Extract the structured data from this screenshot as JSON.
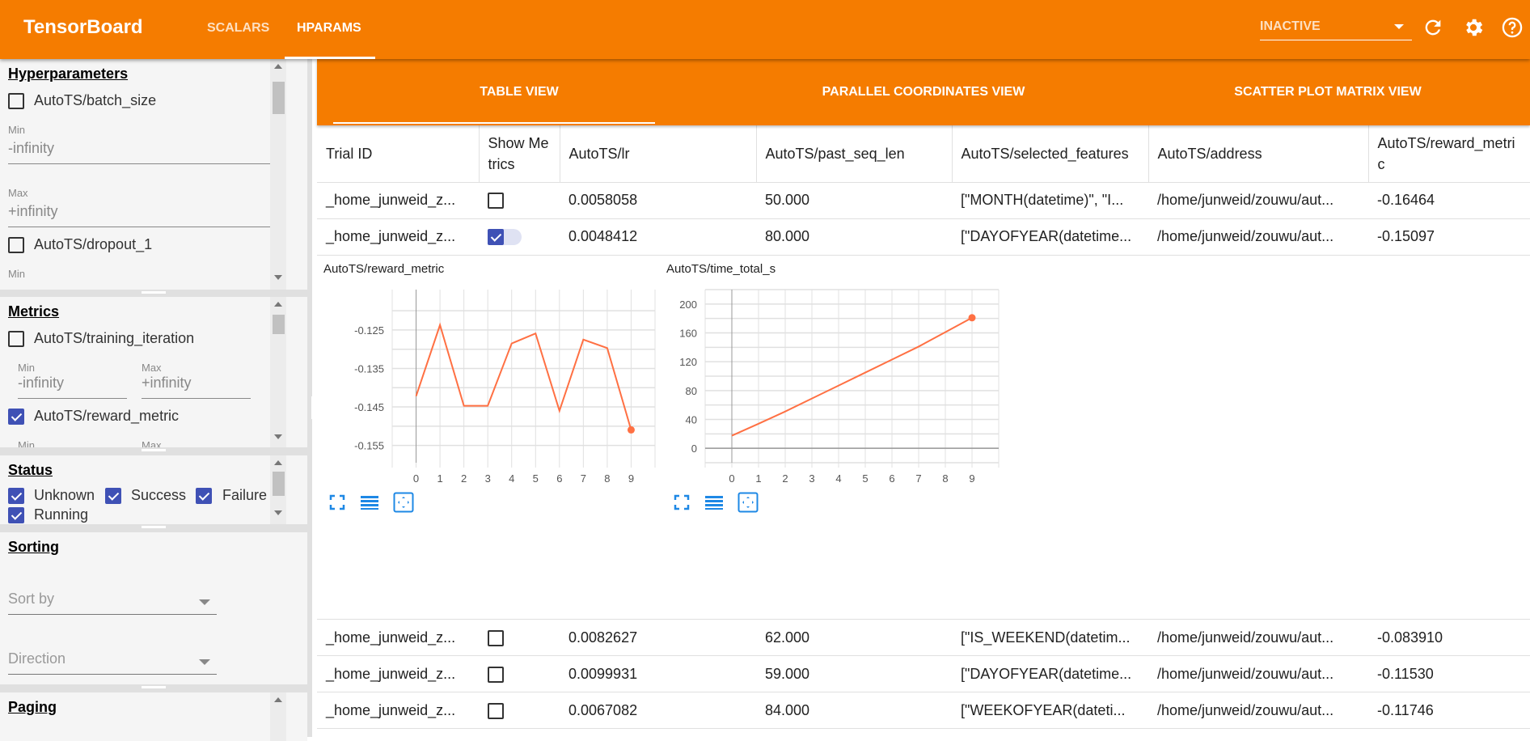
{
  "header": {
    "title": "TensorBoard",
    "tabs": [
      {
        "label": "SCALARS",
        "active": false
      },
      {
        "label": "HPARAMS",
        "active": true
      }
    ],
    "run_selector": "INACTIVE",
    "icons": [
      "refresh-icon",
      "settings-icon",
      "help-icon"
    ],
    "color": "#f57c00"
  },
  "sidebar": {
    "hyperparameters": {
      "title": "Hyperparameters",
      "items": [
        {
          "label": "AutoTS/batch_size",
          "checked": false,
          "min_label": "Min",
          "min": "-infinity",
          "max_label": "Max",
          "max": "+infinity"
        },
        {
          "label": "AutoTS/dropout_1",
          "checked": false,
          "min_label": "Min"
        }
      ]
    },
    "metrics": {
      "title": "Metrics",
      "items": [
        {
          "label": "AutoTS/training_iteration",
          "checked": false,
          "min_label": "Min",
          "min": "-infinity",
          "max_label": "Max",
          "max": "+infinity"
        },
        {
          "label": "AutoTS/reward_metric",
          "checked": true,
          "min_label": "Min",
          "max_label": "Max"
        }
      ]
    },
    "status": {
      "title": "Status",
      "items": [
        {
          "label": "Unknown",
          "checked": true
        },
        {
          "label": "Success",
          "checked": true
        },
        {
          "label": "Failure",
          "checked": true
        },
        {
          "label": "Running",
          "checked": true
        }
      ]
    },
    "sorting": {
      "title": "Sorting",
      "sort_by": "Sort by",
      "direction": "Direction"
    },
    "paging": {
      "title": "Paging"
    }
  },
  "view_tabs": [
    {
      "label": "TABLE VIEW",
      "active": true
    },
    {
      "label": "PARALLEL COORDINATES VIEW",
      "active": false
    },
    {
      "label": "SCATTER PLOT MATRIX VIEW",
      "active": false
    }
  ],
  "table": {
    "columns": [
      "Trial ID",
      "Show Metrics",
      "AutoTS/lr",
      "AutoTS/past_seq_len",
      "AutoTS/selected_features",
      "AutoTS/address",
      "AutoTS/reward_metric"
    ],
    "rows": [
      {
        "trial": "_home_junweid_z...",
        "show": false,
        "lr": "0.0058058",
        "past": "50.000",
        "features": "[\"MONTH(datetime)\", \"I...",
        "address": "/home/junweid/zouwu/aut...",
        "reward": "-0.16464"
      },
      {
        "trial": "_home_junweid_z...",
        "show": true,
        "lr": "0.0048412",
        "past": "80.000",
        "features": "[\"DAYOFYEAR(datetime...",
        "address": "/home/junweid/zouwu/aut...",
        "reward": "-0.15097"
      },
      {
        "trial": "_home_junweid_z...",
        "show": false,
        "lr": "0.0082627",
        "past": "62.000",
        "features": "[\"IS_WEEKEND(datetim...",
        "address": "/home/junweid/zouwu/aut...",
        "reward": "-0.083910"
      },
      {
        "trial": "_home_junweid_z...",
        "show": false,
        "lr": "0.0099931",
        "past": "59.000",
        "features": "[\"DAYOFYEAR(datetime...",
        "address": "/home/junweid/zouwu/aut...",
        "reward": "-0.11530"
      },
      {
        "trial": "_home_junweid_z...",
        "show": false,
        "lr": "0.0067082",
        "past": "84.000",
        "features": "[\"WEEKOFYEAR(dateti...",
        "address": "/home/junweid/zouwu/aut...",
        "reward": "-0.11746"
      }
    ]
  },
  "chart_data": [
    {
      "type": "line",
      "title": "AutoTS/reward_metric",
      "x": [
        0,
        1,
        2,
        3,
        4,
        5,
        6,
        7,
        8,
        9
      ],
      "y": [
        -0.1422,
        -0.1237,
        -0.1447,
        -0.1447,
        -0.1285,
        -0.1259,
        -0.146,
        -0.1275,
        -0.1297,
        -0.15097
      ],
      "xticks": [
        "0",
        "1",
        "2",
        "3",
        "4",
        "5",
        "6",
        "7",
        "8",
        "9"
      ],
      "yticks": [
        "-0.125",
        "-0.135",
        "-0.145",
        "-0.155"
      ],
      "ytick_values": [
        -0.125,
        -0.135,
        -0.145,
        -0.155
      ],
      "xlim": [
        -1,
        10
      ],
      "ylim": [
        -0.1595,
        -0.1145
      ],
      "grid": true,
      "color": "#ff7043"
    },
    {
      "type": "line",
      "title": "AutoTS/time_total_s",
      "x": [
        0,
        1,
        2,
        3,
        4,
        5,
        6,
        7,
        8,
        9
      ],
      "y": [
        17.5,
        34,
        51,
        69,
        87,
        105,
        123,
        141,
        161,
        181
      ],
      "xticks": [
        "0",
        "1",
        "2",
        "3",
        "4",
        "5",
        "6",
        "7",
        "8",
        "9"
      ],
      "yticks": [
        "200",
        "160",
        "120",
        "80",
        "40",
        "0"
      ],
      "ytick_values": [
        200,
        160,
        120,
        80,
        40,
        0
      ],
      "xlim": [
        -1,
        10
      ],
      "ylim": [
        -20,
        220
      ],
      "grid": true,
      "color": "#ff7043"
    }
  ],
  "chart_icons": [
    "fullscreen-icon",
    "data-series-icon",
    "fit-domain-icon"
  ]
}
